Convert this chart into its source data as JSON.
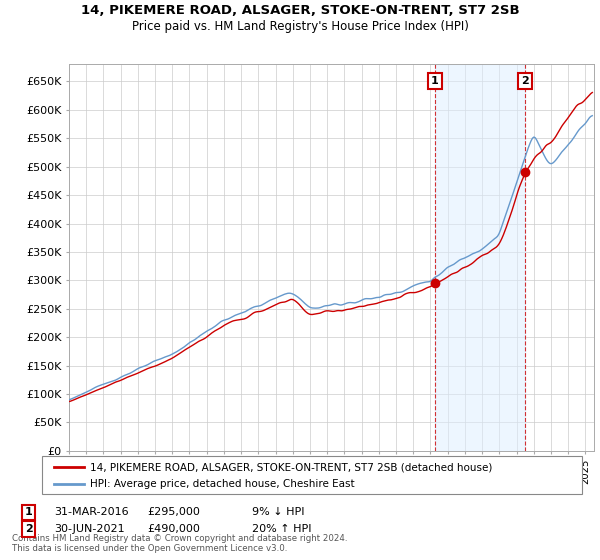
{
  "title_line1": "14, PIKEMERE ROAD, ALSAGER, STOKE-ON-TRENT, ST7 2SB",
  "title_line2": "Price paid vs. HM Land Registry's House Price Index (HPI)",
  "ylim": [
    0,
    680000
  ],
  "yticks": [
    0,
    50000,
    100000,
    150000,
    200000,
    250000,
    300000,
    350000,
    400000,
    450000,
    500000,
    550000,
    600000,
    650000
  ],
  "ytick_labels": [
    "£0",
    "£50K",
    "£100K",
    "£150K",
    "£200K",
    "£250K",
    "£300K",
    "£350K",
    "£400K",
    "£450K",
    "£500K",
    "£550K",
    "£600K",
    "£650K"
  ],
  "ann1_x": 2016.25,
  "ann1_y": 295000,
  "ann1_label": "1",
  "ann1_date": "31-MAR-2016",
  "ann1_price": "£295,000",
  "ann1_pct": "9% ↓ HPI",
  "ann2_x": 2021.5,
  "ann2_y": 490000,
  "ann2_label": "2",
  "ann2_date": "30-JUN-2021",
  "ann2_price": "£490,000",
  "ann2_pct": "20% ↑ HPI",
  "legend_line1": "14, PIKEMERE ROAD, ALSAGER, STOKE-ON-TRENT, ST7 2SB (detached house)",
  "legend_line2": "HPI: Average price, detached house, Cheshire East",
  "footer1": "Contains HM Land Registry data © Crown copyright and database right 2024.",
  "footer2": "This data is licensed under the Open Government Licence v3.0.",
  "red": "#cc0000",
  "blue": "#6699cc",
  "blue_fill": "#ddeeff",
  "grid_color": "#cccccc",
  "bg": "#ffffff",
  "xlim_start": 1995,
  "xlim_end": 2025.5
}
